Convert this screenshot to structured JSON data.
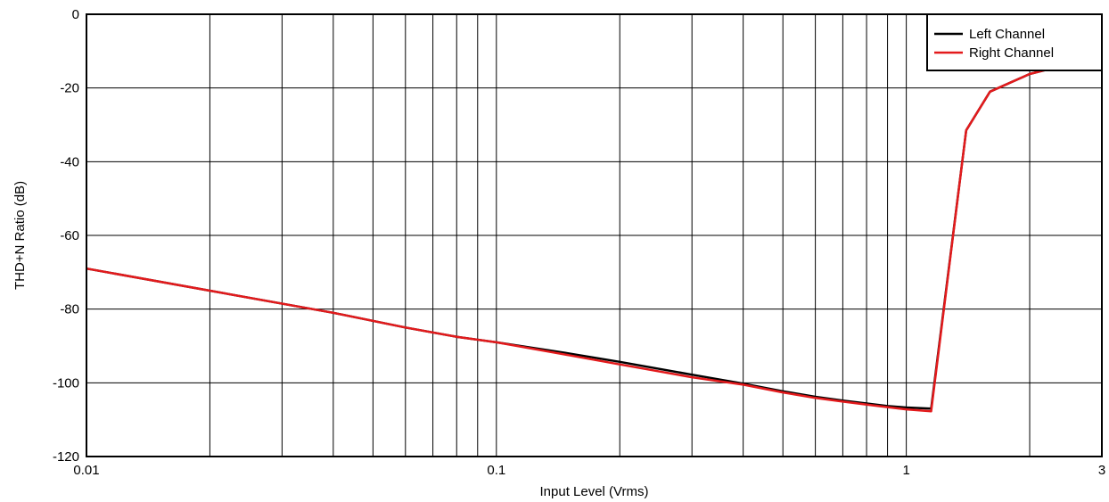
{
  "chart_data": {
    "type": "line",
    "title": "",
    "xlabel": "Input Level (Vrms)",
    "ylabel": "THD+N Ratio (dB)",
    "x_scale": "log",
    "xlim": [
      0.01,
      3
    ],
    "ylim": [
      -120,
      0
    ],
    "grid": true,
    "legend_position": "top-right",
    "x_tick_labels": [
      {
        "value": 0.01,
        "label": "0.01"
      },
      {
        "value": 0.1,
        "label": "0.1"
      },
      {
        "value": 1,
        "label": "1"
      },
      {
        "value": 3,
        "label": "3"
      }
    ],
    "x_gridlines": [
      0.02,
      0.03,
      0.04,
      0.05,
      0.06,
      0.07,
      0.08,
      0.09,
      0.1,
      0.2,
      0.3,
      0.4,
      0.5,
      0.6,
      0.7,
      0.8,
      0.9,
      1,
      2
    ],
    "y_ticks": [
      {
        "value": 0,
        "label": "0"
      },
      {
        "value": -20,
        "label": "-20"
      },
      {
        "value": -40,
        "label": "-40"
      },
      {
        "value": -60,
        "label": "-60"
      },
      {
        "value": -80,
        "label": "-80"
      },
      {
        "value": -100,
        "label": "-100"
      },
      {
        "value": -120,
        "label": "-120"
      }
    ],
    "series": [
      {
        "name": "Left Channel",
        "color": "#000000",
        "x": [
          0.01,
          0.02,
          0.04,
          0.06,
          0.08,
          0.1,
          0.15,
          0.2,
          0.3,
          0.4,
          0.5,
          0.6,
          0.7,
          0.8,
          0.9,
          1.0,
          1.15,
          1.4,
          1.6,
          2.0,
          2.3,
          2.6
        ],
        "y": [
          -69,
          -75,
          -81,
          -85,
          -87.5,
          -89,
          -92,
          -94.3,
          -97.8,
          -100.2,
          -102.3,
          -103.8,
          -104.8,
          -105.6,
          -106.3,
          -106.7,
          -107,
          -31.5,
          -21,
          -16.2,
          -14.5,
          -14
        ]
      },
      {
        "name": "Right Channel",
        "color": "#e31a1c",
        "x": [
          0.01,
          0.02,
          0.04,
          0.06,
          0.08,
          0.1,
          0.15,
          0.2,
          0.3,
          0.4,
          0.5,
          0.6,
          0.7,
          0.8,
          0.9,
          1.0,
          1.15,
          1.4,
          1.6,
          2.0,
          2.3,
          2.6
        ],
        "y": [
          -69,
          -75,
          -81,
          -85,
          -87.5,
          -89,
          -92.5,
          -95,
          -98.5,
          -100.5,
          -102.6,
          -104.1,
          -105.1,
          -105.9,
          -106.6,
          -107.2,
          -107.7,
          -31.5,
          -21,
          -16.2,
          -14.5,
          -14
        ]
      }
    ]
  }
}
